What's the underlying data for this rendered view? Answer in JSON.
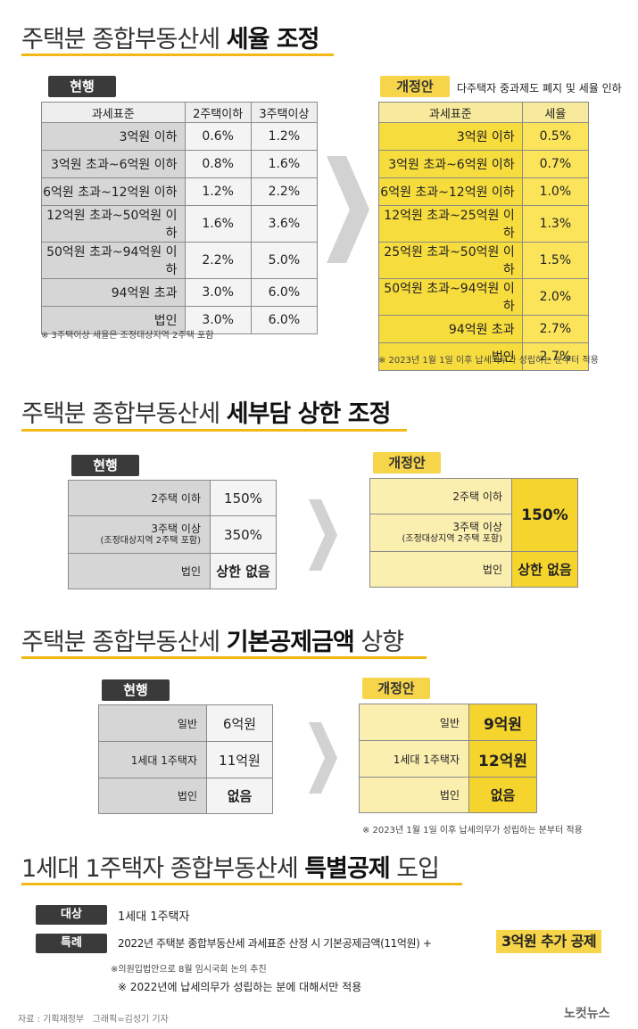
{
  "s1": {
    "title_a": "주택분 종합부동산세 ",
    "title_b": "세율 조정",
    "current_badge": "현행",
    "proposal_badge": "개정안",
    "proposal_note": "다주택자 중과제도 폐지 및 세율 인하",
    "current_headers": [
      "과세표준",
      "2주택이하",
      "3주택이상"
    ],
    "current_rows": [
      [
        "3억원 이하",
        "0.6%",
        "1.2%"
      ],
      [
        "3억원 초과~6억원 이하",
        "0.8%",
        "1.6%"
      ],
      [
        "6억원 초과~12억원 이하",
        "1.2%",
        "2.2%"
      ],
      [
        "12억원 초과~50억원 이하",
        "1.6%",
        "3.6%"
      ],
      [
        "50억원 초과~94억원 이하",
        "2.2%",
        "5.0%"
      ],
      [
        "94억원 초과",
        "3.0%",
        "6.0%"
      ],
      [
        "법인",
        "3.0%",
        "6.0%"
      ]
    ],
    "current_footnote": "※ 3주택이상 세율은 조정대상지역 2주택 포함",
    "proposal_headers": [
      "과세표준",
      "세율"
    ],
    "proposal_rows": [
      [
        "3억원 이하",
        "0.5%"
      ],
      [
        "3억원 초과~6억원 이하",
        "0.7%"
      ],
      [
        "6억원 초과~12억원 이하",
        "1.0%"
      ],
      [
        "12억원 초과~25억원 이하",
        "1.3%"
      ],
      [
        "25억원 초과~50억원 이하",
        "1.5%"
      ],
      [
        "50억원 초과~94억원 이하",
        "2.0%"
      ],
      [
        "94억원 초과",
        "2.7%"
      ],
      [
        "법인",
        "2.7%"
      ]
    ],
    "proposal_footnote": "※ 2023년 1월 1일 이후 납세의무가 성립하는 분부터 적용"
  },
  "s2": {
    "title_a": "주택분 종합부동산세 ",
    "title_b": "세부담 상한 조정",
    "current_badge": "현행",
    "proposal_badge": "개정안",
    "current_rows": [
      {
        "label": "2주택 이하",
        "sub": "",
        "value": "150%"
      },
      {
        "label": "3주택 이상",
        "sub": "(조정대상지역 2주택 포함)",
        "value": "350%"
      },
      {
        "label": "법인",
        "sub": "",
        "value": "상한 없음"
      }
    ],
    "proposal_rows": [
      {
        "label": "2주택 이하",
        "sub": ""
      },
      {
        "label": "3주택 이상",
        "sub": "(조정대상지역 2주택 포함)"
      },
      {
        "label": "법인",
        "sub": ""
      }
    ],
    "proposal_merged_value": "150%",
    "proposal_corp_value": "상한 없음"
  },
  "s3": {
    "title_a": "주택분 종합부동산세 ",
    "title_b": "기본공제금액",
    "title_c": " 상향",
    "current_badge": "현행",
    "proposal_badge": "개정안",
    "current_rows": [
      {
        "label": "일반",
        "value": "6억원"
      },
      {
        "label": "1세대 1주택자",
        "value": "11억원"
      },
      {
        "label": "법인",
        "value": "없음"
      }
    ],
    "proposal_rows": [
      {
        "label": "일반",
        "value": "9억원"
      },
      {
        "label": "1세대 1주택자",
        "value": "12억원"
      },
      {
        "label": "법인",
        "value": "없음"
      }
    ],
    "footnote": "※ 2023년 1월 1일 이후 납세의무가 성립하는 분부터 적용"
  },
  "s4": {
    "title_a": "1세대 1주택자 종합부동산세 ",
    "title_b": "특별공제",
    "title_c": " 도입",
    "target_label": "대상",
    "target_text": "1세대 1주택자",
    "special_label": "특례",
    "special_text": "2022년 주택분 종합부동산세 과세표준 산정 시 기본공제금액(11억원) +",
    "special_highlight": "3억원 추가 공제",
    "note1": "※의원입법안으로 8월 임시국회 논의 추진",
    "note2": "※ 2022년에 납세의무가 성립하는 분에 대해서만 적용"
  },
  "credit": "자료 : 기획재정부   그래픽=김성기 기자",
  "logo": "노컷뉴스",
  "colors": {
    "accent_yellow": "#f6d54a",
    "underline": "#f2b818",
    "dark_badge": "#3a3a3a",
    "gray_cell": "#d6d6d6"
  }
}
